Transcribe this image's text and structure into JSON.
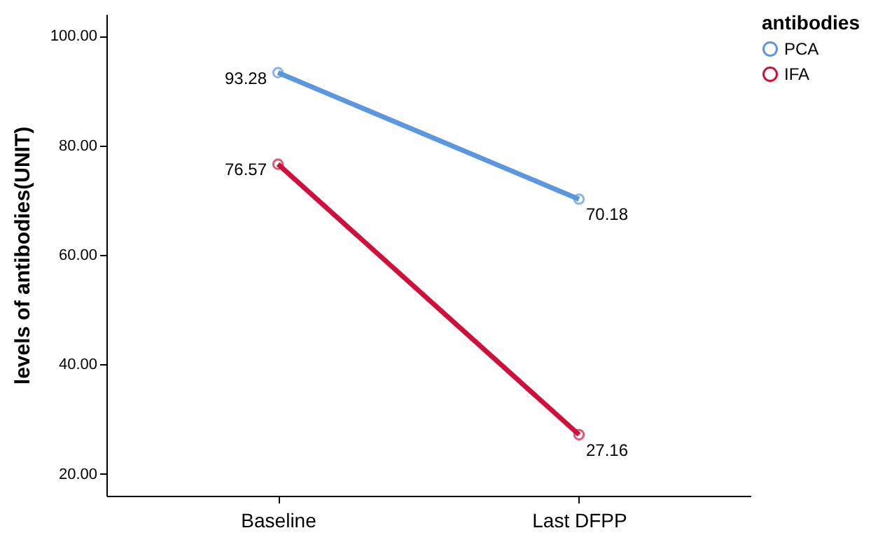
{
  "chart_data": {
    "type": "line",
    "ylabel": "levels of antibodies(UNIT)",
    "legend_title": "antibodies",
    "categories": [
      "Baseline",
      "Last DFPP"
    ],
    "series": [
      {
        "name": "PCA",
        "color": "#5b96e0",
        "values": [
          93.28,
          70.18
        ]
      },
      {
        "name": "IFA",
        "color": "#d0103a",
        "values": [
          76.57,
          27.16
        ]
      }
    ],
    "ylim": [
      16,
      104
    ],
    "yticks": [
      {
        "value": 20,
        "label": "20.00"
      },
      {
        "value": 40,
        "label": "40.00"
      },
      {
        "value": 60,
        "label": "60.00"
      },
      {
        "value": 80,
        "label": "80.00"
      },
      {
        "value": 100,
        "label": "100.00"
      }
    ],
    "data_labels": true,
    "marker": "circle",
    "line_style": "solid",
    "legend": "top right",
    "grid": false
  }
}
